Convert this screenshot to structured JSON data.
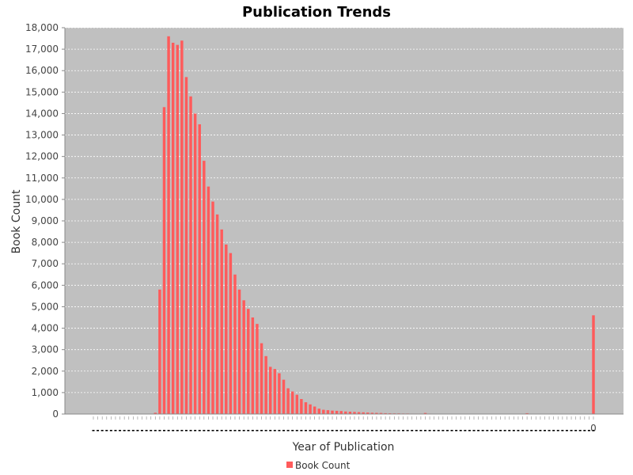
{
  "chart_data": {
    "type": "bar",
    "title": "Publication Trends",
    "xlabel": "Year of Publication",
    "ylabel": "Book Count",
    "ylim": [
      0,
      18000
    ],
    "yticks": [
      0,
      1000,
      2000,
      3000,
      4000,
      5000,
      6000,
      7000,
      8000,
      9000,
      10000,
      11000,
      12000,
      13000,
      14000,
      15000,
      16000,
      17000,
      18000
    ],
    "ytick_labels": [
      "0",
      "1,000",
      "2,000",
      "3,000",
      "4,000",
      "5,000",
      "6,000",
      "7,000",
      "8,000",
      "9,000",
      "10,000",
      "11,000",
      "12,000",
      "13,000",
      "14,000",
      "15,000",
      "16,000",
      "17,000",
      "18,000"
    ],
    "x_last_label": "0",
    "grid": true,
    "legend": "bottom",
    "series": [
      {
        "name": "Book Count",
        "color": "#ff5b5b",
        "values": [
          0,
          0,
          0,
          0,
          0,
          0,
          0,
          0,
          0,
          0,
          0,
          0,
          0,
          0,
          60,
          5800,
          14300,
          17600,
          17300,
          17200,
          17400,
          15700,
          14800,
          14000,
          13500,
          11800,
          10600,
          9900,
          9300,
          8600,
          7900,
          7500,
          6500,
          5800,
          5300,
          4900,
          4500,
          4200,
          3300,
          2700,
          2200,
          2100,
          1900,
          1600,
          1200,
          1050,
          900,
          700,
          550,
          450,
          350,
          250,
          200,
          180,
          160,
          150,
          140,
          120,
          110,
          100,
          90,
          80,
          70,
          60,
          55,
          50,
          40,
          35,
          30,
          30,
          25,
          25,
          20,
          20,
          20,
          50,
          20,
          15,
          15,
          15,
          15,
          15,
          15,
          10,
          10,
          10,
          10,
          10,
          10,
          10,
          10,
          10,
          10,
          10,
          10,
          10,
          10,
          10,
          40,
          10,
          10,
          10,
          10,
          10,
          10,
          10,
          10,
          10,
          10,
          10,
          10,
          10,
          10,
          4600
        ]
      }
    ]
  }
}
